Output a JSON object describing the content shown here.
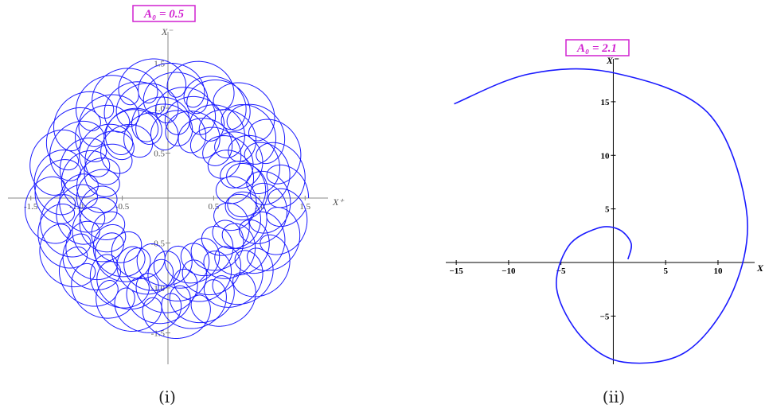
{
  "colors": {
    "curve": "#1a1aff",
    "axis": "#888888",
    "axis_bold": "#000000",
    "label_box": "#d020d0"
  },
  "chart_data": [
    {
      "type": "line",
      "panel": "(i)",
      "parameter_label": "A₀ = 0.5",
      "xlabel": "X⁺",
      "ylabel": "X⁻",
      "xlim": [
        -1.75,
        1.75
      ],
      "ylim": [
        -1.85,
        1.85
      ],
      "xticks": [
        -1.5,
        -1.0,
        -0.5,
        0.5,
        1.0,
        1.5
      ],
      "yticks": [
        -1.5,
        -1.0,
        -0.5,
        0.5,
        1.0,
        1.5
      ],
      "xtick_labels": [
        "-1.5",
        "-1.0",
        "-0.5",
        "0.5",
        "1.0",
        "1.5"
      ],
      "ytick_labels": [
        "-1.5",
        "-1.0",
        "-0.5",
        "0.5",
        "1.0",
        "1.5"
      ],
      "curve_model": {
        "form": "epicycloid-like precessing orbit: (R(t) cos t + r cos(w t), R(t) sin t + r sin(w t))",
        "R_min": 0.75,
        "R_max": 1.35,
        "r_loop": 0.22,
        "w": 15.7,
        "turns": 7
      }
    },
    {
      "type": "line",
      "panel": "(ii)",
      "parameter_label": "A₀ = 2.1",
      "xlabel": "X",
      "ylabel": "X⁻",
      "xlim": [
        -16,
        13.5
      ],
      "ylim": [
        -9.5,
        19
      ],
      "xticks": [
        -15,
        -10,
        -5,
        5,
        10
      ],
      "yticks": [
        -5,
        5,
        10,
        15
      ],
      "xtick_labels": [
        "−15",
        "−10",
        "−5",
        "5",
        "10"
      ],
      "ytick_labels": [
        "−5",
        "5",
        "10",
        "15"
      ],
      "curve_model": {
        "form": "expanding spiral (clockwise), r = a*exp(b*theta)",
        "start": [
          1.4,
          0.3
        ],
        "points_approx": [
          [
            1.4,
            0.3
          ],
          [
            1.7,
            1.8
          ],
          [
            0.5,
            3.1
          ],
          [
            -1.5,
            3.2
          ],
          [
            -4.3,
            1.5
          ],
          [
            -5.4,
            -2.5
          ],
          [
            -3,
            -7
          ],
          [
            1,
            -9.3
          ],
          [
            7,
            -8.3
          ],
          [
            11.5,
            -2.5
          ],
          [
            12.7,
            5
          ],
          [
            9,
            14
          ],
          [
            0,
            17.7
          ],
          [
            -8,
            17.6
          ],
          [
            -15.2,
            14.8
          ]
        ]
      }
    }
  ],
  "captions": {
    "panel_i": "(i)",
    "panel_ii": "(ii)"
  }
}
